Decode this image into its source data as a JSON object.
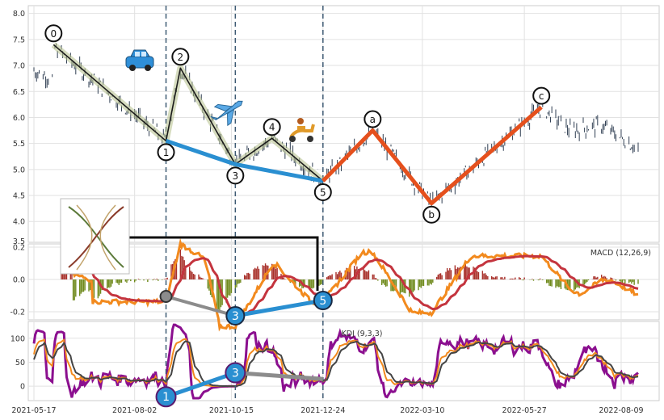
{
  "chart_data": {
    "type": "line",
    "panels": [
      {
        "id": "price",
        "ylim": [
          3.6,
          8.15
        ],
        "y_ticks": [
          "3.5",
          "4.0",
          "4.5",
          "5.0",
          "5.5",
          "6.0",
          "6.5",
          "7.0",
          "7.5",
          "8.0"
        ],
        "y_tick_values": [
          3.5,
          4.0,
          4.5,
          5.0,
          5.5,
          6.0,
          6.5,
          7.0,
          7.5,
          8.0
        ],
        "grid": true
      },
      {
        "id": "macd",
        "title": "MACD (12,26,9)",
        "ylim": [
          -0.25,
          0.22
        ],
        "y_ticks": [
          "-0.2",
          "0.0",
          "0.2"
        ],
        "y_tick_values": [
          -0.2,
          0.0,
          0.2
        ],
        "grid": true
      },
      {
        "id": "kdj",
        "title": "KDJ (9,3,3)",
        "ylim": [
          -30,
          135
        ],
        "y_ticks": [
          "0",
          "50",
          "100"
        ],
        "y_tick_values": [
          0,
          50,
          100
        ],
        "grid": true
      }
    ],
    "x_axis": {
      "start": "2021-05-17",
      "end": "2022-08-22",
      "tick_labels": [
        "2021-05-17",
        "2021-08-02",
        "2021-10-15",
        "2021-12-24",
        "2022-03-10",
        "2022-05-27",
        "2022-08-09"
      ],
      "tick_dates": [
        "2021-05-17",
        "2021-08-02",
        "2021-10-15",
        "2021-12-24",
        "2022-03-10",
        "2022-05-27",
        "2022-08-09"
      ]
    },
    "vertical_markers": [
      "2021-08-26",
      "2021-10-18",
      "2021-12-24"
    ],
    "wave_impulse": {
      "labels": [
        "0",
        "1",
        "2",
        "3",
        "4",
        "5"
      ],
      "dates": [
        "2021-06-01",
        "2021-08-26",
        "2021-09-06",
        "2021-10-18",
        "2021-11-15",
        "2021-12-24"
      ],
      "prices": [
        7.4,
        5.55,
        6.95,
        5.1,
        5.6,
        4.78
      ]
    },
    "wave_correction": {
      "labels": [
        "a",
        "b",
        "c"
      ],
      "dates": [
        "2022-01-31",
        "2022-03-17",
        "2022-06-09"
      ],
      "prices": [
        5.75,
        4.35,
        6.2
      ]
    },
    "trend_line_price": {
      "dates": [
        "2021-08-26",
        "2021-10-18",
        "2021-12-24"
      ],
      "prices": [
        5.55,
        5.1,
        4.78
      ]
    },
    "macd_divergence": {
      "labels": [
        "",
        "3",
        "5"
      ],
      "dates": [
        "2021-08-26",
        "2021-10-18",
        "2021-12-24"
      ],
      "values": [
        -0.105,
        -0.225,
        -0.13
      ]
    },
    "kdj_divergence": {
      "labels": [
        "1",
        "3",
        ""
      ],
      "dates": [
        "2021-08-26",
        "2021-10-18",
        "2021-12-24"
      ],
      "values": [
        -22,
        28,
        15
      ]
    },
    "icons": [
      "car-icon",
      "airplane-icon",
      "scooter-icon",
      "dna-thumbnail"
    ]
  }
}
